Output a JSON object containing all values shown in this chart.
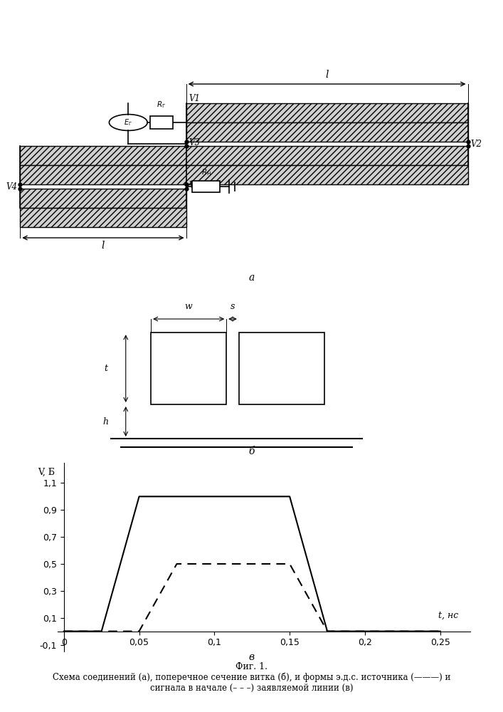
{
  "bg_color": "#ffffff",
  "fig_width": 7.07,
  "fig_height": 10.0,
  "dpi": 100,
  "panel_v": {
    "ylabel": "V, Б",
    "xlabel": "t, нс",
    "yticks": [
      -0.1,
      0.1,
      0.3,
      0.5,
      0.7,
      0.9,
      1.1
    ],
    "ytick_labels": [
      "-0,1",
      "0,1",
      "0,3",
      "0,5",
      "0,7",
      "0,9",
      "1,1"
    ],
    "xticks": [
      0,
      0.05,
      0.1,
      0.15,
      0.2,
      0.25
    ],
    "xtick_labels": [
      "0",
      "0,05",
      "0,1",
      "0,15",
      "0,2",
      "0,25"
    ],
    "xlim": [
      -0.004,
      0.27
    ],
    "ylim": [
      -0.15,
      1.25
    ],
    "solid_line": {
      "x": [
        0,
        0.025,
        0.05,
        0.15,
        0.175,
        0.2,
        0.25
      ],
      "y": [
        0,
        0,
        1.0,
        1.0,
        0,
        0,
        0
      ],
      "color": "#000000",
      "linewidth": 1.5
    },
    "dashed_line": {
      "x": [
        0,
        0.05,
        0.075,
        0.15,
        0.175,
        0.2,
        0.25
      ],
      "y": [
        0,
        0,
        0.5,
        0.5,
        0,
        0,
        0
      ],
      "color": "#000000",
      "linewidth": 1.5
    }
  },
  "caption_fig": "Фиг. 1.",
  "caption_text1": "Схема соединений (а), поперечное сечение витка (б), и формы э.д.с. источника (———) и",
  "caption_text2": "сигнала в начале (– – –) заявляемой линии (в)"
}
